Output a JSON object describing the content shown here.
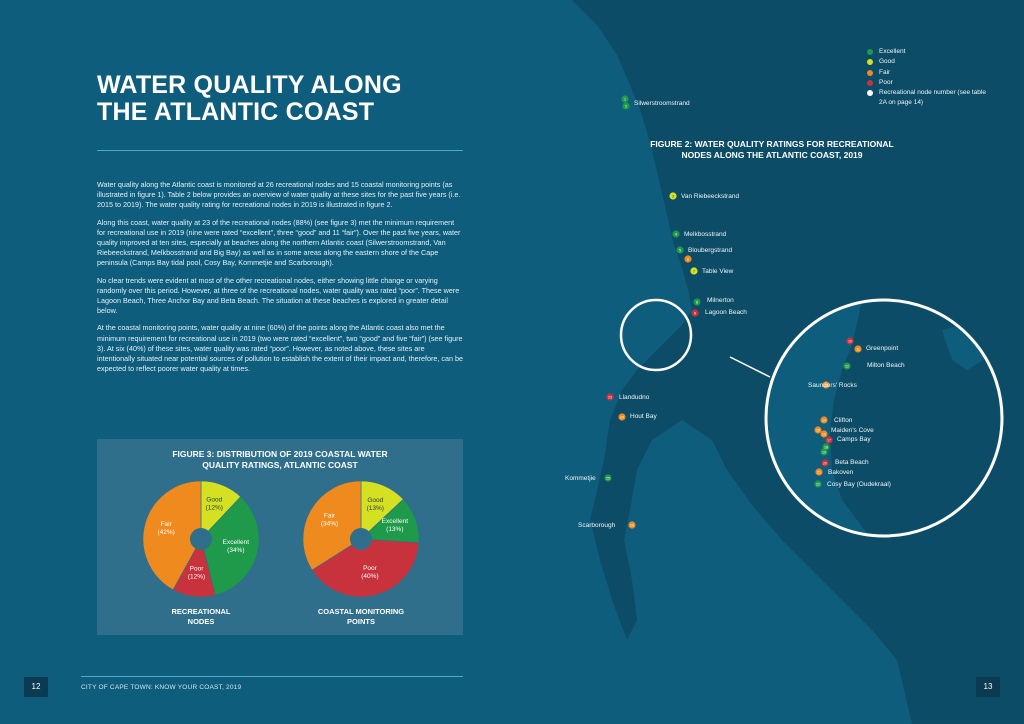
{
  "left_page": {
    "title_line1": "WATER QUALITY ALONG",
    "title_line2": "THE ATLANTIC COAST",
    "paragraphs": [
      "Water quality along the Atlantic coast is monitored at 26 recreational nodes and 15 coastal monitoring points (as illustrated in figure 1). Table 2 below provides an overview of water quality at these sites for the past five years (i.e. 2015 to 2019). The water quality rating for recreational nodes in 2019 is illustrated in figure 2.",
      "Along this coast, water quality at 23 of the recreational nodes (88%) (see figure 3) met the minimum requirement for recreational use in 2019 (nine were rated “excellent”, three “good” and 11 “fair”). Over the past five years, water quality improved at ten sites, especially at beaches along the northern Atlantic coast (Silwerstroomstrand, Van Riebeeckstrand, Melkbosstrand and Big Bay) as well as in some areas along the eastern shore of the Cape peninsula (Camps Bay tidal pool, Cosy Bay, Kommetjie and Scarborough).",
      "No clear trends were evident at most of the other recreational nodes, either showing little change or varying randomly over this period. However, at three of the recreational nodes, water quality was rated “poor”. These were Lagoon Beach, Three Anchor Bay and Beta Beach. The situation at these beaches is explored in greater detail below.",
      "At the coastal monitoring points, water quality at nine (60%) of the points along the Atlantic coast also met the minimum requirement for recreational use in 2019 (two were rated “excellent”, two “good” and five “fair”) (see figure 3). At six (40%) of these sites, water quality was rated “poor”. However, as noted above, these sites are intentionally situated near potential sources of pollution to establish the extent of their impact and, therefore, can be expected to reflect poorer water quality at times."
    ],
    "figure3": {
      "title_line1": "FIGURE 3: DISTRIBUTION OF 2019 COASTAL WATER",
      "title_line2": "QUALITY RATINGS, ATLANTIC COAST",
      "captions": [
        {
          "line1": "RECREATIONAL",
          "line2": "NODES"
        },
        {
          "line1": "COASTAL MONITORING",
          "line2": "POINTS"
        }
      ]
    },
    "page_number": "12",
    "footer": "CITY OF CAPE TOWN: KNOW YOUR COAST, 2019"
  },
  "right_page": {
    "figure2_title_line1": "FIGURE 2: WATER QUALITY RATINGS FOR RECREATIONAL",
    "figure2_title_line2": "NODES ALONG THE ATLANTIC COAST, 2019",
    "legend": [
      {
        "label": "Excellent",
        "color": "#1e9a4a"
      },
      {
        "label": "Good",
        "color": "#d4e021"
      },
      {
        "label": "Fair",
        "color": "#ef8a1e"
      },
      {
        "label": "Poor",
        "color": "#c8323c"
      },
      {
        "label": "Recreational node number (see table 2A on page 14)",
        "color": "#ffffff"
      }
    ],
    "page_number": "13",
    "map_labels": [
      "Silwerstroomstrand",
      "Van Riebeeckstrand",
      "Melkbosstrand",
      "Bloubergstrand",
      "Table View",
      "Milnerton",
      "Lagoon Beach",
      "Llandudno",
      "Hout Bay",
      "Kommetjie",
      "Scarborough",
      "Greenpoint",
      "Milton Beach",
      "Saunders' Rocks",
      "Clifton",
      "Maiden's Cove",
      "Camps Bay",
      "Beta Beach",
      "Bakoven",
      "Cosy Bay (Oudekraal)"
    ],
    "map_node_numbers": [
      "1",
      "2",
      "3",
      "4",
      "5",
      "6",
      "7",
      "8",
      "9",
      "10",
      "11",
      "12",
      "13",
      "14",
      "15",
      "16",
      "17",
      "18",
      "19",
      "20",
      "21",
      "22",
      "23",
      "24",
      "25",
      "26"
    ]
  },
  "chart_data": [
    {
      "type": "pie",
      "title": "RECREATIONAL NODES",
      "categories": [
        "Good",
        "Excellent",
        "Poor",
        "Fair"
      ],
      "values": [
        12,
        34,
        12,
        42
      ],
      "labels": [
        "Good (12%)",
        "Excellent (34%)",
        "Poor (12%)",
        "Fair (42%)"
      ],
      "colors": [
        "#d4e021",
        "#1e9a4a",
        "#c8323c",
        "#ef8a1e"
      ]
    },
    {
      "type": "pie",
      "title": "COASTAL MONITORING POINTS",
      "categories": [
        "Good",
        "Excellent",
        "Poor",
        "Fair"
      ],
      "values": [
        13,
        13,
        40,
        34
      ],
      "labels": [
        "Good (13%)",
        "Excellent (13%)",
        "Poor (40%)",
        "Fair (34%)"
      ],
      "colors": [
        "#d4e021",
        "#1e9a4a",
        "#c8323c",
        "#ef8a1e"
      ]
    }
  ]
}
